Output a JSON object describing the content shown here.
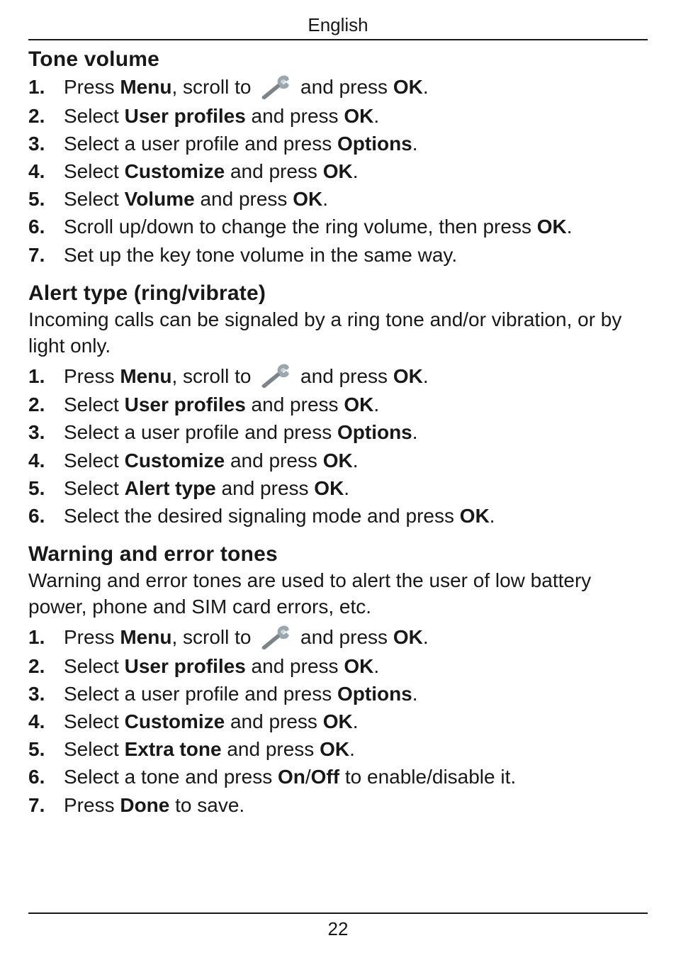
{
  "header": {
    "language_label": "English"
  },
  "wrench_icon": {
    "handle_color": "#7c848a",
    "head_color": "#9aa7ae",
    "inner_color": "#c9d2d7",
    "width": 44,
    "height": 34
  },
  "sections": [
    {
      "title": "Tone volume",
      "intro": null,
      "steps": [
        {
          "segments": [
            {
              "t": "Press "
            },
            {
              "t": "Menu",
              "b": true
            },
            {
              "t": ", scroll to "
            },
            {
              "icon": true
            },
            {
              "t": " and press "
            },
            {
              "t": "OK",
              "b": true
            },
            {
              "t": "."
            }
          ]
        },
        {
          "segments": [
            {
              "t": "Select "
            },
            {
              "t": "User profiles",
              "b": true
            },
            {
              "t": " and press "
            },
            {
              "t": "OK",
              "b": true
            },
            {
              "t": "."
            }
          ]
        },
        {
          "segments": [
            {
              "t": "Select a user profile and press "
            },
            {
              "t": "Options",
              "b": true
            },
            {
              "t": "."
            }
          ]
        },
        {
          "segments": [
            {
              "t": "Select "
            },
            {
              "t": "Customize",
              "b": true
            },
            {
              "t": " and press "
            },
            {
              "t": "OK",
              "b": true
            },
            {
              "t": "."
            }
          ]
        },
        {
          "segments": [
            {
              "t": "Select "
            },
            {
              "t": "Volume",
              "b": true
            },
            {
              "t": " and press "
            },
            {
              "t": "OK",
              "b": true
            },
            {
              "t": "."
            }
          ]
        },
        {
          "segments": [
            {
              "t": "Scroll up/down to change the ring volume, then press "
            },
            {
              "t": "OK",
              "b": true
            },
            {
              "t": "."
            }
          ]
        },
        {
          "segments": [
            {
              "t": "Set up the key tone volume in the same way."
            }
          ]
        }
      ]
    },
    {
      "title": "Alert type (ring/vibrate)",
      "intro": "Incoming calls can be signaled by a ring tone and/or vibration, or by light only.",
      "steps": [
        {
          "segments": [
            {
              "t": "Press "
            },
            {
              "t": "Menu",
              "b": true
            },
            {
              "t": ", scroll to "
            },
            {
              "icon": true
            },
            {
              "t": " and press "
            },
            {
              "t": "OK",
              "b": true
            },
            {
              "t": "."
            }
          ]
        },
        {
          "segments": [
            {
              "t": "Select "
            },
            {
              "t": "User profiles",
              "b": true
            },
            {
              "t": " and press "
            },
            {
              "t": "OK",
              "b": true
            },
            {
              "t": "."
            }
          ]
        },
        {
          "segments": [
            {
              "t": "Select a user profile and press "
            },
            {
              "t": "Options",
              "b": true
            },
            {
              "t": "."
            }
          ]
        },
        {
          "segments": [
            {
              "t": "Select "
            },
            {
              "t": "Customize",
              "b": true
            },
            {
              "t": " and press "
            },
            {
              "t": "OK",
              "b": true
            },
            {
              "t": "."
            }
          ]
        },
        {
          "segments": [
            {
              "t": "Select "
            },
            {
              "t": "Alert type",
              "b": true
            },
            {
              "t": " and press "
            },
            {
              "t": "OK",
              "b": true
            },
            {
              "t": "."
            }
          ]
        },
        {
          "segments": [
            {
              "t": "Select the desired signaling mode and press "
            },
            {
              "t": "OK",
              "b": true
            },
            {
              "t": "."
            }
          ]
        }
      ]
    },
    {
      "title": "Warning and error tones",
      "intro": "Warning and error tones are used to alert the user of low battery power, phone and SIM card errors, etc.",
      "steps": [
        {
          "segments": [
            {
              "t": "Press "
            },
            {
              "t": "Menu",
              "b": true
            },
            {
              "t": ", scroll to "
            },
            {
              "icon": true
            },
            {
              "t": " and press "
            },
            {
              "t": "OK",
              "b": true
            },
            {
              "t": "."
            }
          ]
        },
        {
          "segments": [
            {
              "t": "Select "
            },
            {
              "t": "User profiles",
              "b": true
            },
            {
              "t": " and press "
            },
            {
              "t": "OK",
              "b": true
            },
            {
              "t": "."
            }
          ]
        },
        {
          "segments": [
            {
              "t": "Select a user profile and press "
            },
            {
              "t": "Options",
              "b": true
            },
            {
              "t": "."
            }
          ]
        },
        {
          "segments": [
            {
              "t": "Select "
            },
            {
              "t": "Customize",
              "b": true
            },
            {
              "t": " and press "
            },
            {
              "t": "OK",
              "b": true
            },
            {
              "t": "."
            }
          ]
        },
        {
          "segments": [
            {
              "t": "Select "
            },
            {
              "t": "Extra tone",
              "b": true
            },
            {
              "t": " and press "
            },
            {
              "t": "OK",
              "b": true
            },
            {
              "t": "."
            }
          ]
        },
        {
          "segments": [
            {
              "t": "Select a tone and press "
            },
            {
              "t": "On",
              "b": true
            },
            {
              "t": "/"
            },
            {
              "t": "Off",
              "b": true
            },
            {
              "t": " to enable/disable it."
            }
          ]
        },
        {
          "segments": [
            {
              "t": "Press "
            },
            {
              "t": "Done",
              "b": true
            },
            {
              "t": " to save."
            }
          ]
        }
      ]
    }
  ],
  "footer": {
    "page_number": "22"
  }
}
